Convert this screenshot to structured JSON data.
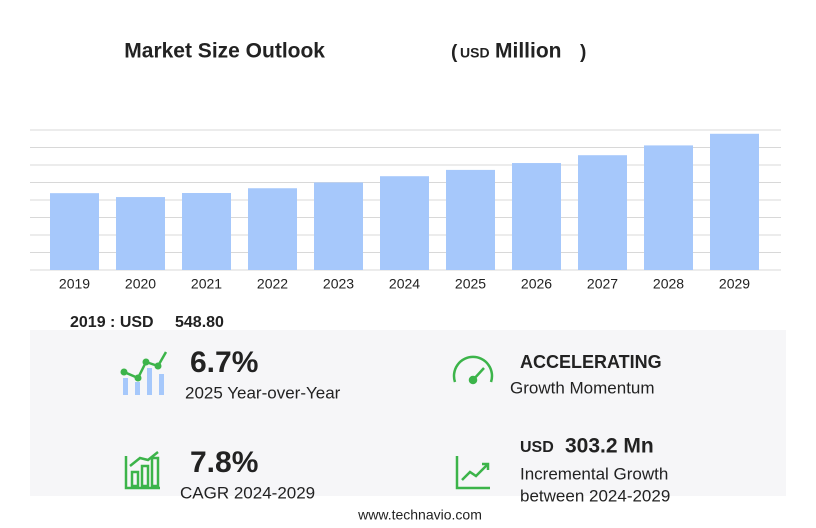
{
  "chart_data": {
    "type": "bar",
    "title": "Market Size Outlook",
    "unit_open": "(",
    "unit_prefix": "USD",
    "unit": "Million",
    "unit_close": ")",
    "categories": [
      "2019",
      "2020",
      "2021",
      "2022",
      "2023",
      "2024",
      "2025",
      "2026",
      "2027",
      "2028",
      "2029"
    ],
    "values": [
      548.8,
      521,
      550,
      584,
      625,
      670,
      715,
      764,
      820,
      890,
      973
    ],
    "color": "#a6c8fb",
    "ylim": [
      0,
      1000
    ],
    "yticks": [
      0,
      125,
      250,
      375,
      500,
      625,
      750,
      875,
      1000
    ],
    "grid": true
  },
  "summary": {
    "base_label": "2019 : USD",
    "base_value": "548.80",
    "yoy": {
      "value": "6.7%",
      "label": "2025 Year-over-Year"
    },
    "momentum": {
      "value": "ACCELERATING",
      "label": "Growth Momentum"
    },
    "cagr": {
      "value": "7.8%",
      "label": "CAGR 2024-2029"
    },
    "incremental": {
      "prefix": "USD",
      "value": "303.2 Mn",
      "label": "Incremental Growth",
      "label2": "between 2024-2029"
    }
  },
  "footer": "www.technavio.com"
}
